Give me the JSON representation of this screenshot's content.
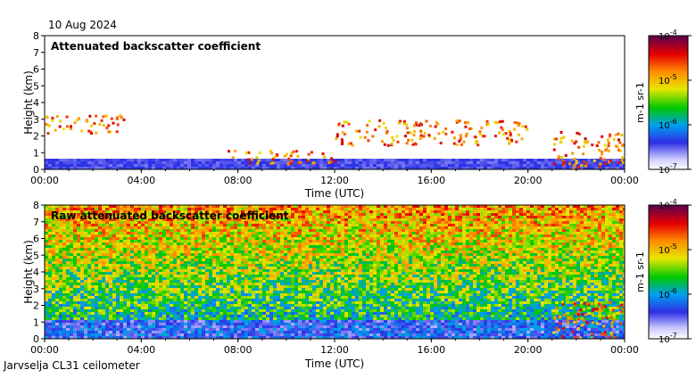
{
  "date": "10 Aug 2024",
  "footer": "Jarvselja CL31 ceilometer",
  "chart_data": [
    {
      "type": "heatmap",
      "title": "Attenuated backscatter coefficient",
      "xlabel": "Time (UTC)",
      "ylabel": "Height (km)",
      "xticks": [
        "00:00",
        "04:00",
        "08:00",
        "12:00",
        "16:00",
        "20:00",
        "00:00"
      ],
      "xlim_hours": [
        0,
        24
      ],
      "yticks": [
        0,
        1,
        2,
        3,
        4,
        5,
        6,
        7,
        8
      ],
      "ylim_km": [
        0,
        8
      ],
      "colorbar": {
        "label": "m-1 sr-1",
        "scale": "log",
        "range": [
          1e-07,
          0.0001
        ],
        "tick_labels": [
          "10-7",
          "10-6",
          "10-5",
          "10-4"
        ]
      },
      "features": [
        {
          "name": "aerosol layer",
          "time_h": [
            0,
            24
          ],
          "height_km": [
            0,
            0.4
          ],
          "level": "low"
        },
        {
          "name": "elevated layer",
          "time_h": [
            0,
            3.5
          ],
          "height_km": [
            2.2,
            3.3
          ],
          "level": "high"
        },
        {
          "name": "rising boundary layer",
          "time_h": [
            7.5,
            12
          ],
          "height_km": [
            0.4,
            1.2
          ],
          "level": "high"
        },
        {
          "name": "scattered clouds",
          "time_h": [
            12,
            20
          ],
          "height_km": [
            1.5,
            3.0
          ],
          "level": "high"
        },
        {
          "name": "cloud/precipitation",
          "time_h": [
            21,
            24
          ],
          "height_km": [
            0,
            2.3
          ],
          "level": "high"
        }
      ]
    },
    {
      "type": "heatmap",
      "title": "Raw attenuated backscatter coefficient",
      "xlabel": "Time (UTC)",
      "ylabel": "Height (km)",
      "xticks": [
        "00:00",
        "04:00",
        "08:00",
        "12:00",
        "16:00",
        "20:00",
        "00:00"
      ],
      "xlim_hours": [
        0,
        24
      ],
      "yticks": [
        0,
        1,
        2,
        3,
        4,
        5,
        6,
        7,
        8
      ],
      "ylim_km": [
        0,
        8
      ],
      "colorbar": {
        "label": "m-1 sr-1",
        "scale": "log",
        "range": [
          1e-07,
          0.0001
        ],
        "tick_labels": [
          "10-7",
          "10-6",
          "10-5",
          "10-4"
        ]
      },
      "features": [
        {
          "name": "noise background",
          "time_h": [
            0,
            24
          ],
          "height_km": [
            0,
            8
          ],
          "level": "medium"
        },
        {
          "name": "boundary layer",
          "time_h": [
            0,
            24
          ],
          "height_km": [
            0,
            1.2
          ],
          "level": "low"
        },
        {
          "name": "cloud/precipitation",
          "time_h": [
            21,
            24
          ],
          "height_km": [
            0,
            2.3
          ],
          "level": "high"
        }
      ]
    }
  ]
}
